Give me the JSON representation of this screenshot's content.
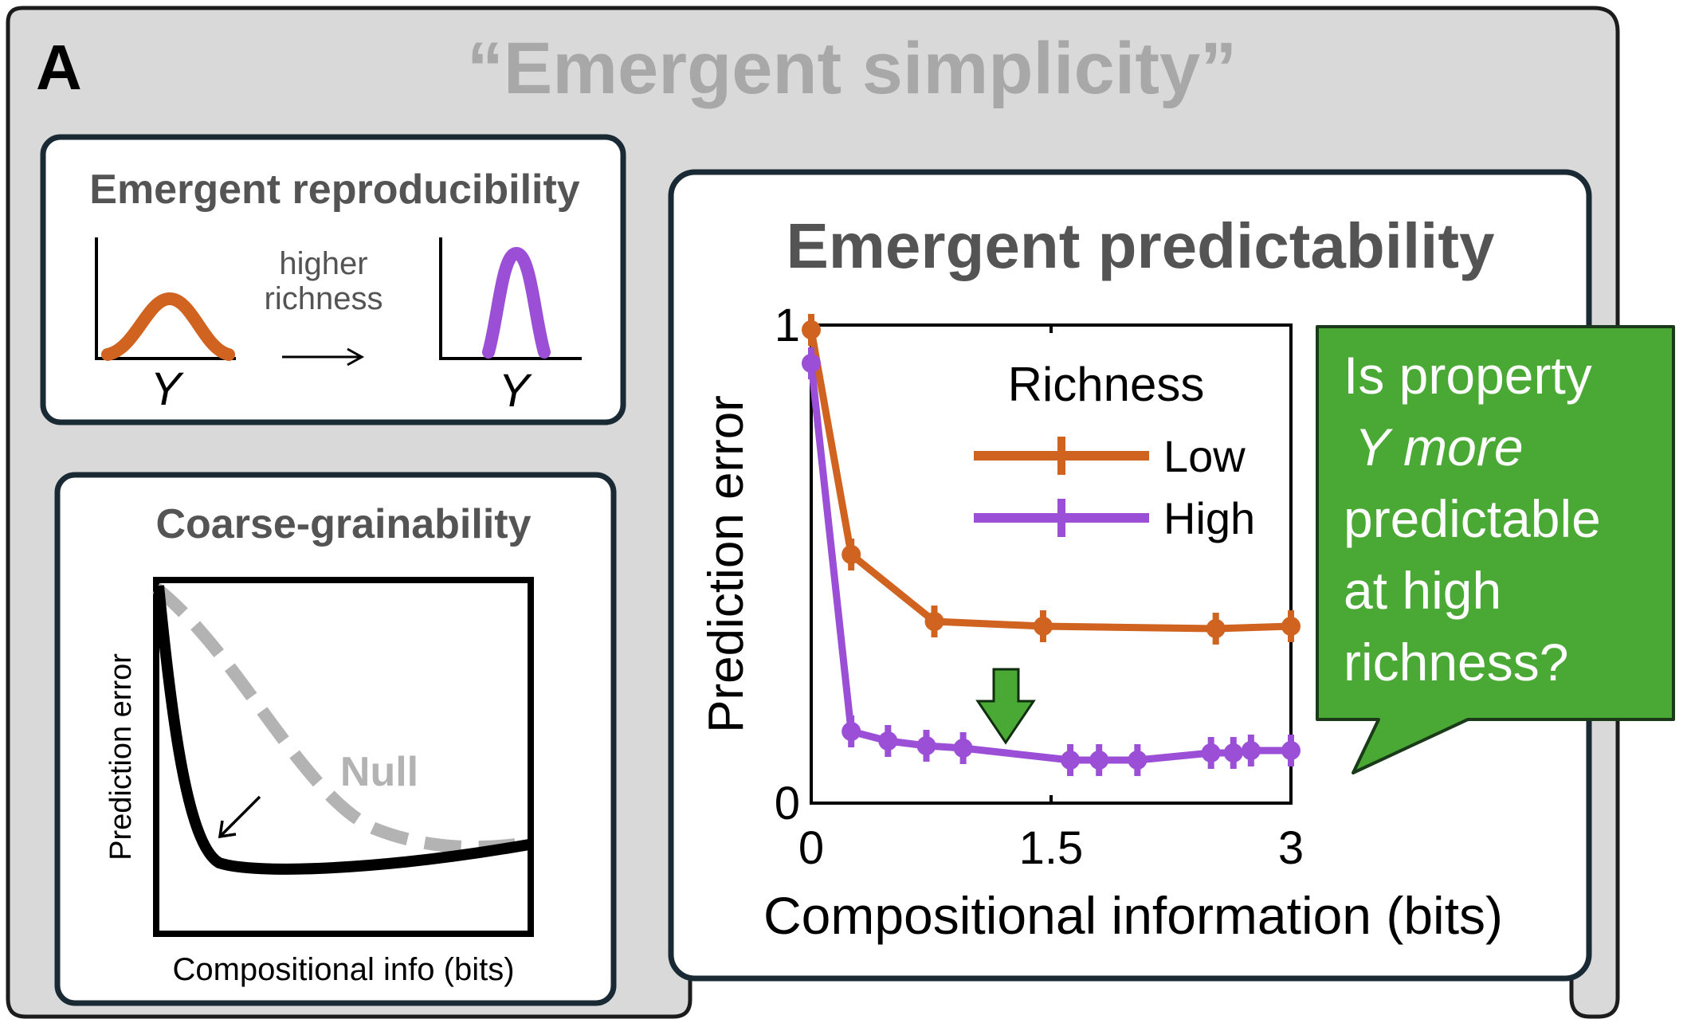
{
  "panel": {
    "letter": "A",
    "title": "“Emergent simplicity”"
  },
  "reproducibility": {
    "title": "Emergent reproducibility",
    "arrow_text_line1": "higher",
    "arrow_text_line2": "richness",
    "axis_label_left": "Y",
    "axis_label_right": "Y"
  },
  "coarse": {
    "title": "Coarse-grainability",
    "ylabel": "Prediction error",
    "xlabel": "Compositional info (bits)",
    "null_label": "Null"
  },
  "predictability": {
    "title": "Emergent predictability"
  },
  "callout": {
    "lines": [
      "Is property",
      "Y more",
      "predictable",
      "at high",
      "richness?"
    ]
  },
  "colors": {
    "panel_bg": "#d9d9d9",
    "low": "#d0631f",
    "high": "#9b4fd6",
    "null_gray": "#b3b3b3",
    "callout_green": "#4aa834",
    "title_gray": "#a8a8a8",
    "heading_gray": "#545454"
  },
  "chart_data": {
    "type": "line",
    "xlabel": "Compositional information (bits)",
    "ylabel": "Prediction error",
    "xlim": [
      0,
      3
    ],
    "ylim": [
      0,
      1
    ],
    "xticks": [
      "0",
      "1.5",
      "3"
    ],
    "yticks": [
      "0",
      "1"
    ],
    "legend_title": "Richness",
    "legend_position": "top-right",
    "series": [
      {
        "name": "Low",
        "x": [
          0,
          0.25,
          0.77,
          1.45,
          2.53,
          3.0
        ],
        "y": [
          0.99,
          0.52,
          0.38,
          0.37,
          0.365,
          0.37
        ]
      },
      {
        "name": "High",
        "x": [
          0,
          0.25,
          0.48,
          0.72,
          0.95,
          1.62,
          1.8,
          2.04,
          2.5,
          2.64,
          2.75,
          3.0
        ],
        "y": [
          0.92,
          0.15,
          0.13,
          0.12,
          0.115,
          0.09,
          0.09,
          0.09,
          0.105,
          0.105,
          0.11,
          0.11
        ]
      }
    ],
    "annotation": "down-arrow"
  }
}
